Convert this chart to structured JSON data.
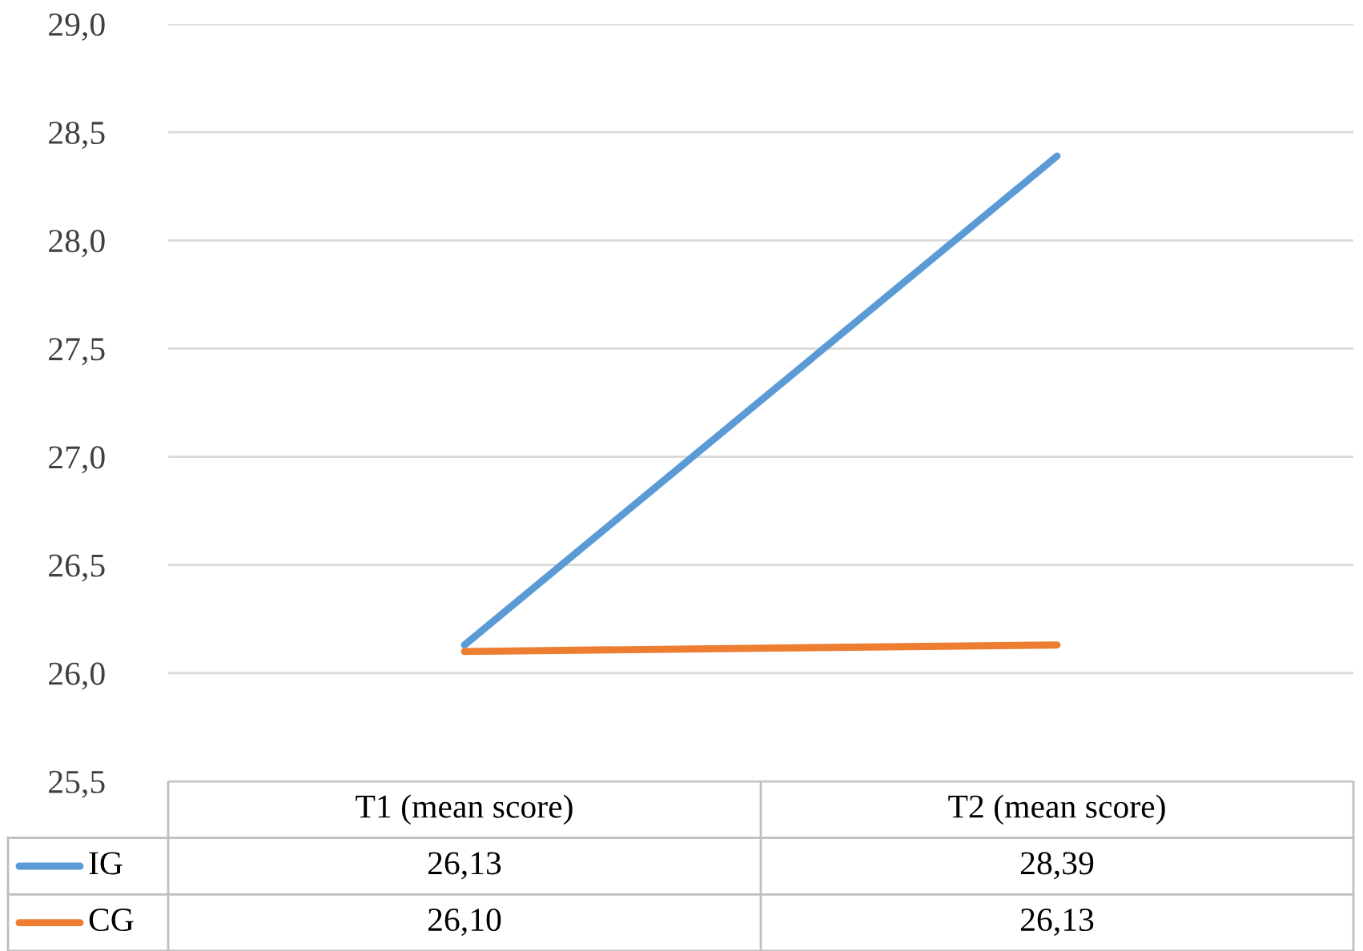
{
  "chart_data": {
    "type": "line",
    "categories": [
      "T1 (mean score)",
      "T2 (mean score)"
    ],
    "series": [
      {
        "name": "IG",
        "color": "#5b9bd5",
        "values": [
          26.13,
          28.39
        ],
        "value_labels": [
          "26,13",
          "28,39"
        ]
      },
      {
        "name": "CG",
        "color": "#ed7d31",
        "values": [
          26.1,
          26.13
        ],
        "value_labels": [
          "26,10",
          "26,13"
        ]
      }
    ],
    "ylim": [
      25.5,
      29.0
    ],
    "yticks": [
      {
        "value": 25.5,
        "label": "25,5"
      },
      {
        "value": 26.0,
        "label": "26,0"
      },
      {
        "value": 26.5,
        "label": "26,5"
      },
      {
        "value": 27.0,
        "label": "27,0"
      },
      {
        "value": 27.5,
        "label": "27,5"
      },
      {
        "value": 28.0,
        "label": "28,0"
      },
      {
        "value": 28.5,
        "label": "28,5"
      },
      {
        "value": 29.0,
        "label": "29,0"
      }
    ],
    "grid": "y",
    "legend": "bottom left",
    "marker": "none",
    "line_style": "solid"
  }
}
